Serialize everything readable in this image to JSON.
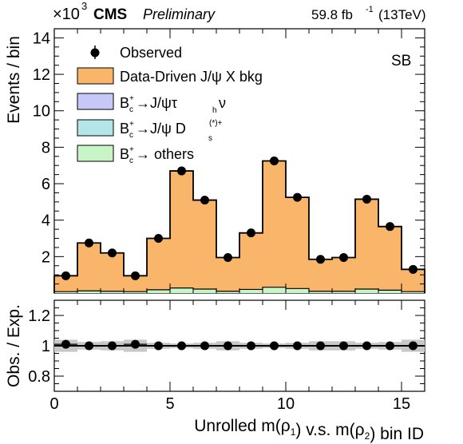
{
  "header": {
    "exponent_base": "×10",
    "exponent_power": "3",
    "experiment": "CMS",
    "status": "Preliminary",
    "lumi": "59.8 fb",
    "lumi_unit_power": "-1",
    "energy": "(13TeV)"
  },
  "region_label": "SB",
  "legend": [
    {
      "kind": "marker",
      "color": "#000000",
      "label_main": "Observed"
    },
    {
      "kind": "box",
      "color": "#f9b56a",
      "label_main": "Data-Driven J/ψ X bkg"
    },
    {
      "kind": "box",
      "color": "#c8c8f8",
      "label_main": "B",
      "label_sup": "+",
      "label_sub": "c",
      "label_rest": "→J/ψτ",
      "label_sub2": "h",
      "label_tail": "ν"
    },
    {
      "kind": "box",
      "color": "#b4e6e8",
      "label_main": "B",
      "label_sup": "+",
      "label_sub": "c",
      "label_rest": "→J/ψ D",
      "label_sub2": "s",
      "label_sup2": "(*)+"
    },
    {
      "kind": "box",
      "color": "#c8f5c8",
      "label_main": "B",
      "label_sup": "+",
      "label_sub": "c",
      "label_rest": "→ others"
    }
  ],
  "chart_data": [
    {
      "type": "bar",
      "panel": "main",
      "ylabel": "Events / bin",
      "ylim": [
        0,
        14.5
      ],
      "yticks": [
        2,
        4,
        6,
        8,
        10,
        12,
        14
      ],
      "x_bins": [
        0,
        1,
        2,
        3,
        4,
        5,
        6,
        7,
        8,
        9,
        10,
        11,
        12,
        13,
        14,
        15,
        16
      ],
      "series": [
        {
          "name": "Data-Driven J/ψ X bkg",
          "color": "#f9b56a",
          "values": [
            0.95,
            2.75,
            2.2,
            0.95,
            3.0,
            6.7,
            5.1,
            1.95,
            3.3,
            7.25,
            5.25,
            1.85,
            1.95,
            5.15,
            3.65,
            1.3
          ]
        },
        {
          "name": "B_c→others",
          "color": "#c8f5c8",
          "values": [
            0.08,
            0.12,
            0.1,
            0.08,
            0.18,
            0.28,
            0.22,
            0.1,
            0.2,
            0.32,
            0.25,
            0.1,
            0.1,
            0.22,
            0.16,
            0.08
          ]
        }
      ],
      "observed": {
        "name": "Observed",
        "x": [
          0.5,
          1.5,
          2.5,
          3.5,
          4.5,
          5.5,
          6.5,
          7.5,
          8.5,
          9.5,
          10.5,
          11.5,
          12.5,
          13.5,
          14.5,
          15.5
        ],
        "y": [
          0.95,
          2.75,
          2.2,
          0.95,
          3.0,
          6.7,
          5.1,
          1.95,
          3.3,
          7.25,
          5.25,
          1.85,
          1.95,
          5.15,
          3.65,
          1.3
        ]
      }
    },
    {
      "type": "scatter",
      "panel": "ratio",
      "xlabel": "Unrolled m(ρ1) v.s. m(ρ2) bin ID",
      "ylabel": "Obs. / Exp.",
      "ylim": [
        0.7,
        1.3
      ],
      "yticks": [
        0.8,
        1.0,
        1.2
      ],
      "ytick_labels": [
        "0.8",
        "1",
        "1.2"
      ],
      "xlim": [
        0,
        16
      ],
      "xticks": [
        0,
        5,
        10,
        15
      ],
      "x": [
        0.5,
        1.5,
        2.5,
        3.5,
        4.5,
        5.5,
        6.5,
        7.5,
        8.5,
        9.5,
        10.5,
        11.5,
        12.5,
        13.5,
        14.5,
        15.5
      ],
      "y": [
        1.01,
        1.0,
        1.0,
        1.01,
        1.0,
        1.0,
        1.0,
        1.0,
        1.0,
        1.0,
        1.0,
        1.0,
        1.0,
        1.0,
        1.0,
        1.0
      ],
      "band_halfwidth": [
        0.04,
        0.025,
        0.03,
        0.04,
        0.02,
        0.015,
        0.02,
        0.03,
        0.02,
        0.015,
        0.02,
        0.03,
        0.03,
        0.02,
        0.025,
        0.04
      ]
    }
  ]
}
